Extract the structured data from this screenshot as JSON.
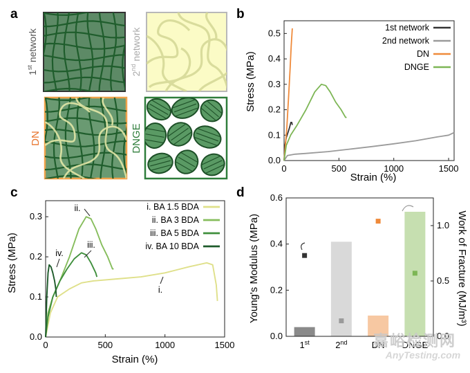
{
  "panels": {
    "a": {
      "letter": "a",
      "tiles": [
        {
          "label": "1st network",
          "base": "1",
          "sup": "st",
          "rest": " network",
          "text_color": "#555555",
          "fill": "#5d8a66",
          "line_color": "#1f5d2c",
          "frame": "#333333"
        },
        {
          "label": "2nd network",
          "base": "2",
          "sup": "nd",
          "rest": " network",
          "text_color": "#aaaaaa",
          "fill": "#fbfbc6",
          "line_color": "#d9dc9c",
          "frame": "#b8b8b8"
        },
        {
          "label": "DN",
          "text_color": "#e8742c",
          "fill": "#6a9a72",
          "frame": "#f0a24a"
        },
        {
          "label": "DNGE",
          "text_color": "#2e7d3b",
          "fill": "#ffffff",
          "frame": "#2e7d3b"
        }
      ]
    },
    "b": {
      "letter": "b",
      "ylabel": "Stress (MPa)",
      "xlabel": "Strain (%)",
      "legend": [
        "1st network",
        "2nd network",
        "DN",
        "DNGE"
      ]
    },
    "c": {
      "letter": "c",
      "ylabel": "Stress (MPa)",
      "xlabel": "Strain (%)",
      "legend": [
        "i. BA 1.5 BDA",
        "ii. BA 3 BDA",
        "iii. BA 5 BDA",
        "iv. BA 10 BDA"
      ],
      "annotations": [
        "ii.",
        "iv.",
        "iii.",
        "i."
      ]
    },
    "d": {
      "letter": "d",
      "ylabel_left": "Young's Modulus (MPa)",
      "ylabel_right": "Work of Fracture (MJ/m³)",
      "categories": [
        "1st",
        "2nd",
        "DN",
        "DNGE"
      ]
    }
  },
  "colors": {
    "first": "#333333",
    "second": "#9a9a9a",
    "dn": "#ef8a3a",
    "dnge": "#7db655",
    "i": "#dfe08a",
    "ii": "#86bd5c",
    "iii": "#3f8f3c",
    "iv": "#1d5a2a"
  },
  "chart_data": [
    {
      "type": "line",
      "panel": "b",
      "xlabel": "Strain (%)",
      "ylabel": "Stress (MPa)",
      "xlim": [
        0,
        1550
      ],
      "ylim": [
        0,
        0.55
      ],
      "xticks": [
        0,
        500,
        1000,
        1500
      ],
      "yticks": [
        0.0,
        0.1,
        0.2,
        0.3,
        0.4,
        0.5
      ],
      "legend_position": "top-right",
      "series": [
        {
          "name": "1st network",
          "color": "#333333",
          "x": [
            0,
            8,
            20,
            35,
            50,
            62,
            70,
            75
          ],
          "y": [
            0,
            0.06,
            0.09,
            0.11,
            0.13,
            0.15,
            0.15,
            0.14
          ]
        },
        {
          "name": "2nd network",
          "color": "#9a9a9a",
          "x": [
            0,
            30,
            100,
            200,
            400,
            600,
            800,
            1000,
            1200,
            1400,
            1500,
            1550
          ],
          "y": [
            0,
            0.02,
            0.025,
            0.028,
            0.035,
            0.045,
            0.055,
            0.066,
            0.078,
            0.093,
            0.1,
            0.11
          ]
        },
        {
          "name": "DN",
          "color": "#ef8a3a",
          "x": [
            0,
            10,
            25,
            40,
            55,
            65,
            75
          ],
          "y": [
            0,
            0.05,
            0.13,
            0.24,
            0.36,
            0.45,
            0.52
          ]
        },
        {
          "name": "DNGE",
          "color": "#7db655",
          "x": [
            0,
            20,
            60,
            120,
            200,
            280,
            340,
            380,
            420,
            470,
            520,
            560,
            570
          ],
          "y": [
            0,
            0.06,
            0.1,
            0.14,
            0.2,
            0.27,
            0.3,
            0.295,
            0.27,
            0.23,
            0.2,
            0.17,
            0.17
          ]
        }
      ]
    },
    {
      "type": "line",
      "panel": "c",
      "xlabel": "Strain (%)",
      "ylabel": "Stress (MPa)",
      "xlim": [
        0,
        1500
      ],
      "ylim": [
        0,
        0.34
      ],
      "xticks": [
        0,
        500,
        1000,
        1500
      ],
      "yticks": [
        0.0,
        0.1,
        0.2,
        0.3
      ],
      "legend_position": "top-right",
      "series": [
        {
          "name": "i. BA 1.5 BDA",
          "color": "#dfe08a",
          "x": [
            0,
            40,
            100,
            200,
            300,
            400,
            600,
            800,
            1000,
            1200,
            1350,
            1400,
            1430,
            1440
          ],
          "y": [
            0,
            0.06,
            0.1,
            0.12,
            0.135,
            0.14,
            0.145,
            0.15,
            0.16,
            0.175,
            0.185,
            0.18,
            0.13,
            0.09
          ]
        },
        {
          "name": "ii. BA 3 BDA",
          "color": "#86bd5c",
          "x": [
            0,
            20,
            60,
            120,
            200,
            280,
            340,
            380,
            420,
            470,
            520,
            560,
            570
          ],
          "y": [
            0,
            0.06,
            0.1,
            0.14,
            0.2,
            0.27,
            0.3,
            0.295,
            0.27,
            0.23,
            0.2,
            0.17,
            0.17
          ]
        },
        {
          "name": "iii. BA 5 BDA",
          "color": "#3f8f3c",
          "x": [
            0,
            20,
            60,
            120,
            180,
            240,
            300,
            340,
            380,
            420,
            430
          ],
          "y": [
            0,
            0.05,
            0.1,
            0.14,
            0.17,
            0.195,
            0.21,
            0.205,
            0.185,
            0.16,
            0.15
          ]
        },
        {
          "name": "iv. BA 10 BDA",
          "color": "#1d5a2a",
          "x": [
            0,
            10,
            20,
            30,
            45,
            60,
            75,
            85,
            90
          ],
          "y": [
            0,
            0.1,
            0.16,
            0.18,
            0.175,
            0.16,
            0.14,
            0.12,
            0.1
          ]
        }
      ]
    },
    {
      "type": "bar",
      "panel": "d",
      "categories": [
        "1st",
        "2nd",
        "DN",
        "DNGE"
      ],
      "ylabel_left": "Young's Modulus (MPa)",
      "ylabel_right": "Work of Fracture (MJ/m³)",
      "ylim_left": [
        0,
        0.6
      ],
      "ylim_right": [
        0,
        1.25
      ],
      "yticks_left": [
        0.0,
        0.2,
        0.4,
        0.6
      ],
      "yticks_right": [
        0.0,
        0.5,
        1.0
      ],
      "series": [
        {
          "axis": "left",
          "kind": "bar",
          "values": [
            0.04,
            0.41,
            0.09,
            0.54
          ],
          "colors": [
            "#8a8a8a",
            "#d9d9d9",
            "#f7c8a2",
            "#c6dfb0"
          ]
        },
        {
          "axis": "right",
          "kind": "marker",
          "values": [
            0.73,
            0.14,
            1.04,
            0.57
          ],
          "colors": [
            "#333333",
            "#9a9a9a",
            "#ef8a3a",
            "#7db655"
          ]
        }
      ]
    }
  ],
  "watermark": {
    "cn": "嘉峪检测网",
    "en": "AnyTesting.com"
  }
}
